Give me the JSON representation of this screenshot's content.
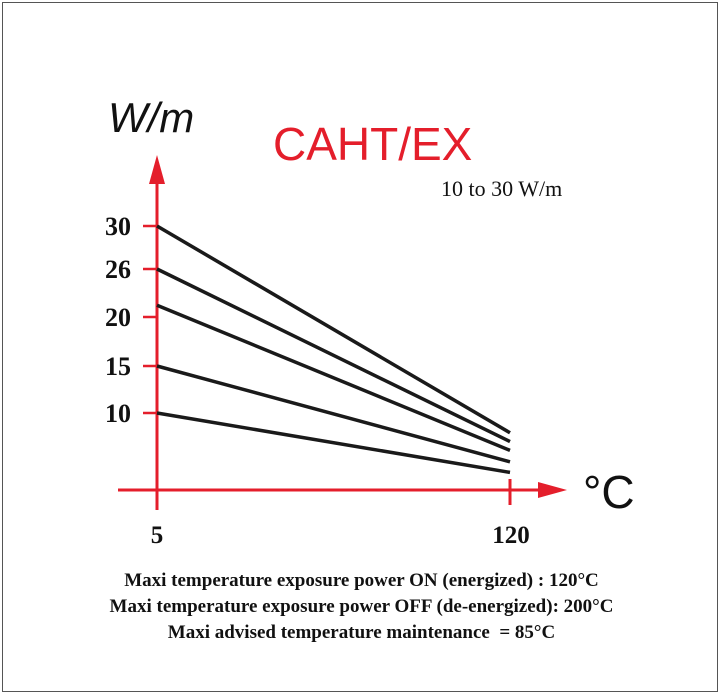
{
  "chart_data": {
    "type": "line",
    "title": "CAHT/EX",
    "subtitle": "10 to 30 W/m",
    "ylabel": "W/m",
    "xlabel": "°C",
    "x_ticks": [
      "5",
      "120"
    ],
    "y_ticks": [
      "10",
      "15",
      "20",
      "26",
      "30"
    ],
    "xlim": [
      5,
      120
    ],
    "ylim": [
      0,
      30
    ],
    "grid": false,
    "series": [
      {
        "values": [
          [
            5,
            30
          ],
          [
            120,
            6.5
          ]
        ]
      },
      {
        "values": [
          [
            5,
            26
          ],
          [
            120,
            5.5
          ]
        ]
      },
      {
        "values": [
          [
            5,
            21
          ],
          [
            120,
            4.5
          ]
        ]
      },
      {
        "values": [
          [
            5,
            15
          ],
          [
            120,
            3.2
          ]
        ]
      },
      {
        "values": [
          [
            5,
            10
          ],
          [
            120,
            2.0
          ]
        ]
      }
    ],
    "colors": {
      "axis": "#e41e2b",
      "title": "#e41e2b",
      "line": "#1a1a1a"
    }
  },
  "notes": [
    "Maxi temperature exposure power ON (energized) : 120°C",
    "Maxi temperature exposure power OFF (de-energized): 200°C",
    "Maxi advised temperature maintenance  = 85°C"
  ]
}
